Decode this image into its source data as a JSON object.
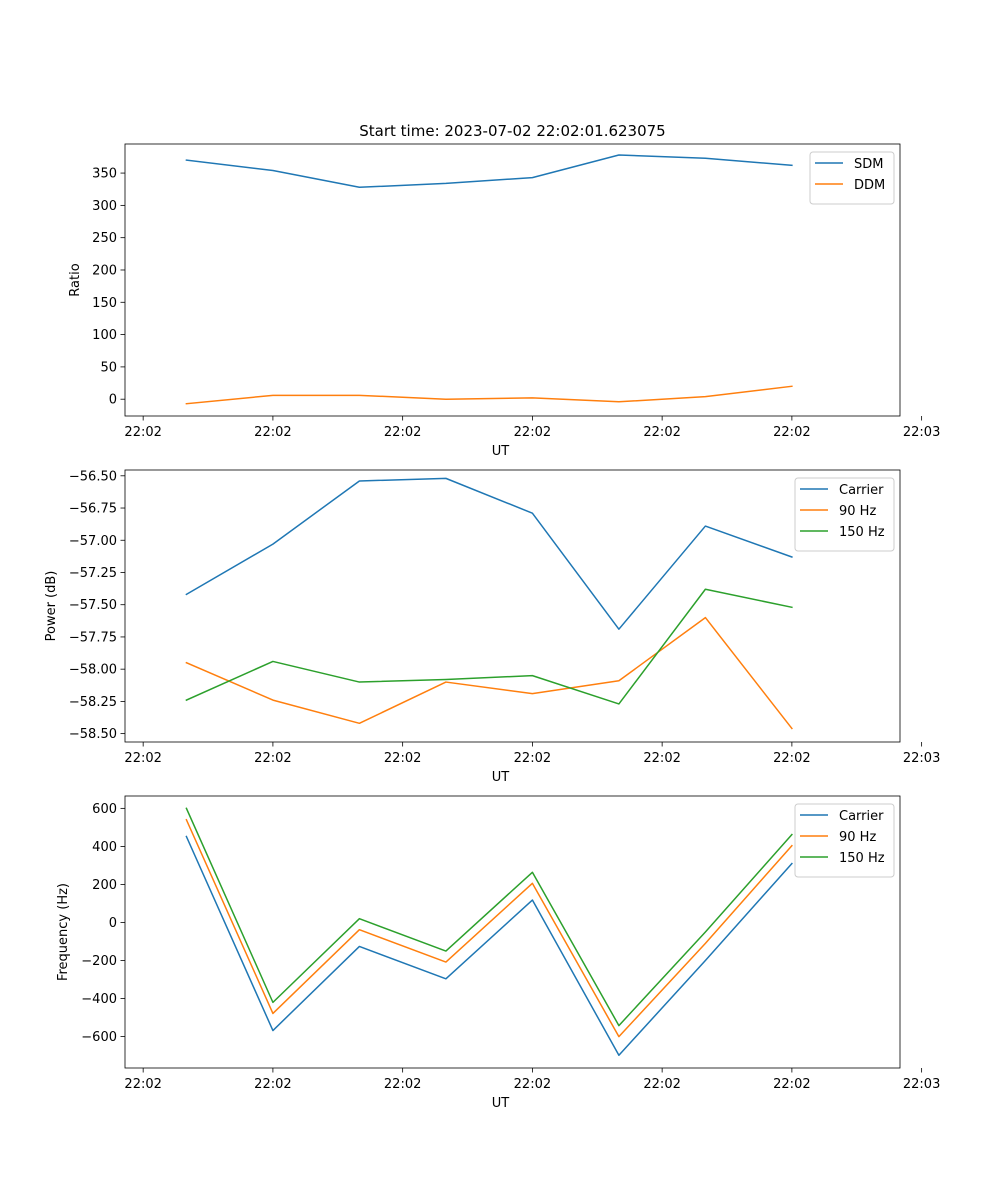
{
  "figure": {
    "title": "Start time: 2023-07-02 22:02:01.623075"
  },
  "chart_data": [
    {
      "type": "line",
      "xlabel": "UT",
      "ylabel": "Ratio",
      "x": [
        1,
        2,
        3,
        4,
        5,
        6,
        7,
        8
      ],
      "xlim": [
        0.29,
        9.25
      ],
      "xticks": [
        {
          "value": 0.5,
          "label": "22:02"
        },
        {
          "value": 2.0,
          "label": "22:02"
        },
        {
          "value": 3.5,
          "label": "22:02"
        },
        {
          "value": 5.0,
          "label": "22:02"
        },
        {
          "value": 6.5,
          "label": "22:02"
        },
        {
          "value": 8.0,
          "label": "22:02"
        },
        {
          "value": 9.5,
          "label": "22:03"
        }
      ],
      "ylim": [
        -26,
        395
      ],
      "yticks": [
        0,
        50,
        100,
        150,
        200,
        250,
        300,
        350
      ],
      "ytick_labels": [
        "0",
        "50",
        "100",
        "150",
        "200",
        "250",
        "300",
        "350"
      ],
      "legend": "top-right",
      "series": [
        {
          "name": "SDM",
          "color": "#1f77b4",
          "values": [
            370,
            354,
            328,
            334,
            343,
            378,
            373,
            362
          ]
        },
        {
          "name": "DDM",
          "color": "#ff7f0e",
          "values": [
            -7,
            6,
            6,
            0,
            2,
            -4,
            4,
            20
          ]
        }
      ]
    },
    {
      "type": "line",
      "xlabel": "UT",
      "ylabel": "Power (dB)",
      "x": [
        1,
        2,
        3,
        4,
        5,
        6,
        7,
        8
      ],
      "xlim": [
        0.29,
        9.25
      ],
      "xticks": [
        {
          "value": 0.5,
          "label": "22:02"
        },
        {
          "value": 2.0,
          "label": "22:02"
        },
        {
          "value": 3.5,
          "label": "22:02"
        },
        {
          "value": 5.0,
          "label": "22:02"
        },
        {
          "value": 6.5,
          "label": "22:02"
        },
        {
          "value": 8.0,
          "label": "22:02"
        },
        {
          "value": 9.5,
          "label": "22:03"
        }
      ],
      "ylim": [
        -58.565,
        -56.455
      ],
      "yticks": [
        -58.5,
        -58.25,
        -58.0,
        -57.75,
        -57.5,
        -57.25,
        -57.0,
        -56.75,
        -56.5
      ],
      "ytick_labels": [
        "−58.50",
        "−58.25",
        "−58.00",
        "−57.75",
        "−57.50",
        "−57.25",
        "−57.00",
        "−56.75",
        "−56.50"
      ],
      "legend": "top-right",
      "series": [
        {
          "name": "Carrier",
          "color": "#1f77b4",
          "values": [
            -57.42,
            -57.03,
            -56.54,
            -56.52,
            -56.79,
            -57.69,
            -56.89,
            -57.13
          ]
        },
        {
          "name": "90 Hz",
          "color": "#ff7f0e",
          "values": [
            -57.95,
            -58.24,
            -58.42,
            -58.1,
            -58.19,
            -58.09,
            -57.6,
            -58.46
          ]
        },
        {
          "name": "150 Hz",
          "color": "#2ca02c",
          "values": [
            -58.24,
            -57.94,
            -58.1,
            -58.08,
            -58.05,
            -58.27,
            -57.38,
            -57.52
          ]
        }
      ]
    },
    {
      "type": "line",
      "xlabel": "UT",
      "ylabel": "Frequency (Hz)",
      "x": [
        1,
        2,
        3,
        4,
        5,
        6,
        7,
        8
      ],
      "xlim": [
        0.29,
        9.25
      ],
      "xticks": [
        {
          "value": 0.5,
          "label": "22:02"
        },
        {
          "value": 2.0,
          "label": "22:02"
        },
        {
          "value": 3.5,
          "label": "22:02"
        },
        {
          "value": 5.0,
          "label": "22:02"
        },
        {
          "value": 6.5,
          "label": "22:02"
        },
        {
          "value": 8.0,
          "label": "22:02"
        },
        {
          "value": 9.5,
          "label": "22:03"
        }
      ],
      "ylim": [
        -765,
        665
      ],
      "yticks": [
        -600,
        -400,
        -200,
        0,
        200,
        400,
        600
      ],
      "ytick_labels": [
        "−600",
        "−400",
        "−200",
        "0",
        "200",
        "400",
        "600"
      ],
      "legend": "top-right",
      "series": [
        {
          "name": "Carrier",
          "color": "#1f77b4",
          "values": [
            452,
            -568,
            -126,
            -296,
            118,
            -698,
            -200,
            310
          ]
        },
        {
          "name": "90 Hz",
          "color": "#ff7f0e",
          "values": [
            540,
            -478,
            -38,
            -208,
            206,
            -600,
            -110,
            404
          ]
        },
        {
          "name": "150 Hz",
          "color": "#2ca02c",
          "values": [
            600,
            -420,
            20,
            -150,
            264,
            -542,
            -50,
            462
          ]
        }
      ]
    }
  ]
}
